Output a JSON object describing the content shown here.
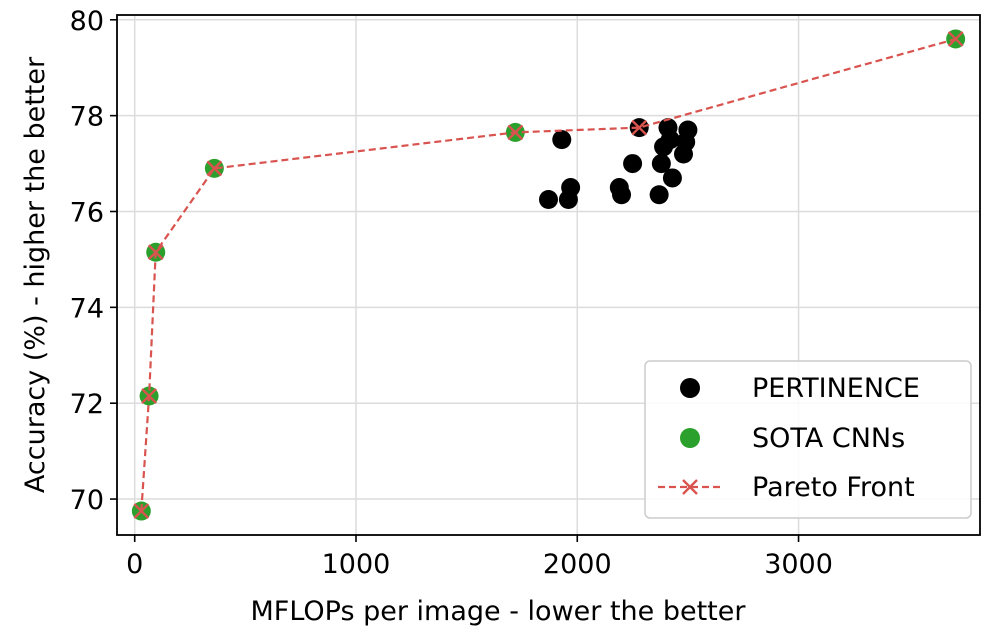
{
  "chart_data": {
    "type": "scatter",
    "title": "",
    "xlabel": "MFLOPs per image - lower the better",
    "ylabel": "Accuracy (%) - higher the better",
    "xlim": [
      -80,
      3820
    ],
    "ylim": [
      69.25,
      80.1
    ],
    "xticks": [
      0,
      1000,
      2000,
      3000
    ],
    "yticks": [
      70,
      72,
      74,
      76,
      78,
      80
    ],
    "grid": true,
    "legend_position": "lower-right",
    "colors": {
      "pertinence": "#000000",
      "sota": "#2ca02c",
      "pareto": "#d9534f"
    },
    "series": [
      {
        "name": "PERTINENCE",
        "kind": "scatter",
        "points": [
          {
            "x": 1870,
            "y": 76.25
          },
          {
            "x": 1930,
            "y": 77.5
          },
          {
            "x": 1960,
            "y": 76.25
          },
          {
            "x": 1970,
            "y": 76.5
          },
          {
            "x": 2190,
            "y": 76.5
          },
          {
            "x": 2200,
            "y": 76.35
          },
          {
            "x": 2250,
            "y": 77.0
          },
          {
            "x": 2280,
            "y": 77.75
          },
          {
            "x": 2370,
            "y": 76.35
          },
          {
            "x": 2380,
            "y": 77.0
          },
          {
            "x": 2390,
            "y": 77.35
          },
          {
            "x": 2410,
            "y": 77.75
          },
          {
            "x": 2420,
            "y": 77.5
          },
          {
            "x": 2430,
            "y": 76.7
          },
          {
            "x": 2480,
            "y": 77.2
          },
          {
            "x": 2490,
            "y": 77.45
          },
          {
            "x": 2500,
            "y": 77.7
          }
        ]
      },
      {
        "name": "SOTA CNNs",
        "kind": "scatter",
        "points": [
          {
            "x": 30,
            "y": 69.75
          },
          {
            "x": 65,
            "y": 72.15
          },
          {
            "x": 95,
            "y": 75.15
          },
          {
            "x": 360,
            "y": 76.9
          },
          {
            "x": 1720,
            "y": 77.65
          },
          {
            "x": 3710,
            "y": 79.6
          }
        ]
      },
      {
        "name": "Pareto Front",
        "kind": "line",
        "points": [
          {
            "x": 30,
            "y": 69.75
          },
          {
            "x": 65,
            "y": 72.15
          },
          {
            "x": 95,
            "y": 75.15
          },
          {
            "x": 360,
            "y": 76.9
          },
          {
            "x": 1720,
            "y": 77.65
          },
          {
            "x": 2280,
            "y": 77.75
          },
          {
            "x": 3710,
            "y": 79.6
          }
        ]
      }
    ]
  }
}
